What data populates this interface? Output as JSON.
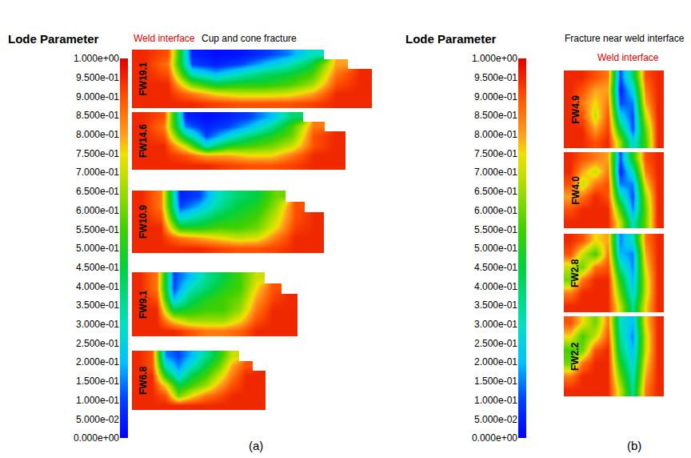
{
  "chart_data": [
    {
      "type": "heatmap",
      "caption": "(a)",
      "title": "Cup and cone fracture",
      "annotations": [
        {
          "text": "Weld interface",
          "color": "#e00000"
        }
      ],
      "colorbar": {
        "title": "Lode Parameter",
        "range": [
          0,
          1
        ],
        "ticks": [
          {
            "value": 1,
            "label": "1.000e+00"
          },
          {
            "value": 0.95,
            "label": "9.500e-01"
          },
          {
            "value": 0.9,
            "label": "9.000e-01"
          },
          {
            "value": 0.85,
            "label": "8.500e-01"
          },
          {
            "value": 0.8,
            "label": "8.000e-01"
          },
          {
            "value": 0.75,
            "label": "7.500e-01"
          },
          {
            "value": 0.7,
            "label": "7.000e-01"
          },
          {
            "value": 0.65,
            "label": "6.500e-01"
          },
          {
            "value": 0.6,
            "label": "6.000e-01"
          },
          {
            "value": 0.55,
            "label": "5.500e-01"
          },
          {
            "value": 0.5,
            "label": "5.000e-01"
          },
          {
            "value": 0.45,
            "label": "4.500e-01"
          },
          {
            "value": 0.4,
            "label": "4.000e-01"
          },
          {
            "value": 0.35,
            "label": "3.500e-01"
          },
          {
            "value": 0.3,
            "label": "3.000e-01"
          },
          {
            "value": 0.25,
            "label": "2.500e-01"
          },
          {
            "value": 0.2,
            "label": "2.000e-01"
          },
          {
            "value": 0.15,
            "label": "1.500e-01"
          },
          {
            "value": 0.1,
            "label": "1.000e-01"
          },
          {
            "value": 0.05,
            "label": "5.000e-02"
          },
          {
            "value": 0,
            "label": "0.000e+00"
          }
        ]
      },
      "maps": [
        {
          "name": "FW19.1",
          "cells": [
            [
              0.95,
              0.9,
              0.05,
              0.02,
              0.03,
              0.08,
              0.15,
              0.3,
              null,
              null
            ],
            [
              0.95,
              0.85,
              0.1,
              0.05,
              0.1,
              0.2,
              0.3,
              0.45,
              0.8,
              null
            ],
            [
              0.95,
              0.9,
              0.3,
              0.2,
              0.3,
              0.4,
              0.45,
              0.55,
              0.85,
              0.95
            ],
            [
              0.95,
              0.95,
              0.6,
              0.45,
              0.5,
              0.5,
              0.55,
              0.65,
              0.9,
              0.95
            ],
            [
              0.95,
              0.95,
              0.85,
              0.75,
              0.7,
              0.7,
              0.72,
              0.8,
              0.95,
              0.95
            ],
            [
              0.95,
              0.95,
              0.95,
              0.92,
              0.9,
              0.9,
              0.9,
              0.92,
              0.95,
              0.95
            ]
          ]
        },
        {
          "name": "FW14.6",
          "cells": [
            [
              0.95,
              0.9,
              0.05,
              0.02,
              0.05,
              0.1,
              0.2,
              0.4,
              null,
              null
            ],
            [
              0.95,
              0.85,
              0.15,
              0.05,
              0.1,
              0.2,
              0.35,
              0.55,
              0.85,
              null
            ],
            [
              0.95,
              0.9,
              0.4,
              0.1,
              0.25,
              0.4,
              0.5,
              0.6,
              0.9,
              0.95
            ],
            [
              0.95,
              0.95,
              0.7,
              0.3,
              0.5,
              0.55,
              0.6,
              0.7,
              0.9,
              0.95
            ],
            [
              0.95,
              0.95,
              0.9,
              0.8,
              0.8,
              0.75,
              0.75,
              0.85,
              0.95,
              0.95
            ],
            [
              0.95,
              0.95,
              0.95,
              0.95,
              0.92,
              0.9,
              0.9,
              0.92,
              0.95,
              0.95
            ]
          ]
        },
        {
          "name": "FW10.9",
          "cells": [
            [
              0.95,
              0.85,
              0.05,
              0.1,
              0.3,
              0.4,
              0.45,
              0.6,
              null,
              null
            ],
            [
              0.95,
              0.85,
              0.1,
              0.2,
              0.35,
              0.45,
              0.5,
              0.65,
              0.9,
              null
            ],
            [
              0.95,
              0.9,
              0.25,
              0.35,
              0.45,
              0.5,
              0.55,
              0.7,
              0.9,
              0.95
            ],
            [
              0.95,
              0.95,
              0.5,
              0.5,
              0.55,
              0.55,
              0.6,
              0.75,
              0.92,
              0.95
            ],
            [
              0.95,
              0.95,
              0.85,
              0.8,
              0.75,
              0.7,
              0.72,
              0.85,
              0.95,
              0.95
            ],
            [
              0.95,
              0.95,
              0.95,
              0.95,
              0.92,
              0.9,
              0.9,
              0.92,
              0.95,
              0.95
            ]
          ]
        },
        {
          "name": "FW9.1",
          "cells": [
            [
              0.95,
              0.85,
              0.1,
              0.2,
              0.35,
              0.45,
              0.55,
              0.7,
              null,
              null
            ],
            [
              0.95,
              0.85,
              0.1,
              0.3,
              0.4,
              0.5,
              0.55,
              0.75,
              0.9,
              null
            ],
            [
              0.95,
              0.9,
              0.2,
              0.4,
              0.5,
              0.55,
              0.6,
              0.8,
              0.92,
              0.95
            ],
            [
              0.95,
              0.95,
              0.45,
              0.5,
              0.55,
              0.55,
              0.65,
              0.85,
              0.95,
              0.95
            ],
            [
              0.95,
              0.95,
              0.75,
              0.65,
              0.65,
              0.65,
              0.75,
              0.9,
              0.95,
              0.95
            ],
            [
              0.95,
              0.95,
              0.95,
              0.9,
              0.85,
              0.85,
              0.88,
              0.95,
              0.95,
              0.95
            ]
          ]
        },
        {
          "name": "FW6.8",
          "cells": [
            [
              0.95,
              0.9,
              0.15,
              0.1,
              0.2,
              0.35,
              0.5,
              0.7,
              null,
              null
            ],
            [
              0.95,
              0.9,
              0.3,
              0.15,
              0.3,
              0.45,
              0.6,
              0.8,
              0.9,
              null
            ],
            [
              0.95,
              0.95,
              0.5,
              0.25,
              0.45,
              0.55,
              0.7,
              0.85,
              0.95,
              0.95
            ],
            [
              0.95,
              0.95,
              0.75,
              0.45,
              0.55,
              0.65,
              0.8,
              0.9,
              0.95,
              0.95
            ],
            [
              0.95,
              0.95,
              0.9,
              0.6,
              0.75,
              0.85,
              0.9,
              0.95,
              0.95,
              0.95
            ],
            [
              0.95,
              0.95,
              0.95,
              0.95,
              0.95,
              0.95,
              0.95,
              0.95,
              0.95,
              0.95
            ]
          ]
        }
      ]
    },
    {
      "type": "heatmap",
      "caption": "(b)",
      "title": "Fracture near weld interface",
      "annotations": [
        {
          "text": "Weld interface",
          "color": "#e00000"
        }
      ],
      "colorbar": {
        "title": "Lode Parameter",
        "range": [
          0,
          1
        ],
        "ticks": [
          {
            "value": 1,
            "label": "1.000e+00"
          },
          {
            "value": 0.95,
            "label": "9.500e-01"
          },
          {
            "value": 0.9,
            "label": "9.000e-01"
          },
          {
            "value": 0.85,
            "label": "8.500e-01"
          },
          {
            "value": 0.8,
            "label": "8.000e-01"
          },
          {
            "value": 0.75,
            "label": "7.500e-01"
          },
          {
            "value": 0.7,
            "label": "7.000e-01"
          },
          {
            "value": 0.65,
            "label": "6.500e-01"
          },
          {
            "value": 0.6,
            "label": "6.000e-01"
          },
          {
            "value": 0.55,
            "label": "5.500e-01"
          },
          {
            "value": 0.5,
            "label": "5.000e-01"
          },
          {
            "value": 0.45,
            "label": "4.500e-01"
          },
          {
            "value": 0.4,
            "label": "4.000e-01"
          },
          {
            "value": 0.35,
            "label": "3.500e-01"
          },
          {
            "value": 0.3,
            "label": "3.000e-01"
          },
          {
            "value": 0.25,
            "label": "2.500e-01"
          },
          {
            "value": 0.2,
            "label": "2.000e-01"
          },
          {
            "value": 0.15,
            "label": "1.500e-01"
          },
          {
            "value": 0.1,
            "label": "1.000e-01"
          },
          {
            "value": 0.05,
            "label": "5.000e-02"
          },
          {
            "value": 0,
            "label": "0.000e+00"
          }
        ]
      },
      "maps": [
        {
          "name": "FW4.9",
          "cells": [
            [
              0.95,
              0.95,
              0.9,
              0.85,
              0.1,
              0.4,
              0.9,
              0.95
            ],
            [
              0.95,
              0.9,
              0.8,
              0.8,
              0.05,
              0.25,
              0.85,
              0.95
            ],
            [
              0.95,
              0.85,
              0.75,
              0.85,
              0.1,
              0.15,
              0.8,
              0.95
            ],
            [
              0.95,
              0.9,
              0.7,
              0.9,
              0.25,
              0.1,
              0.7,
              0.95
            ],
            [
              0.95,
              0.95,
              0.8,
              0.92,
              0.45,
              0.1,
              0.6,
              0.95
            ],
            [
              0.95,
              0.95,
              0.9,
              0.95,
              0.65,
              0.25,
              0.55,
              0.95
            ]
          ]
        },
        {
          "name": "FW4.0",
          "cells": [
            [
              0.95,
              0.9,
              0.85,
              0.8,
              0.1,
              0.5,
              0.9,
              0.95
            ],
            [
              0.95,
              0.8,
              0.7,
              0.85,
              0.05,
              0.3,
              0.85,
              0.95
            ],
            [
              0.9,
              0.7,
              0.85,
              0.9,
              0.15,
              0.15,
              0.75,
              0.95
            ],
            [
              0.8,
              0.85,
              0.95,
              0.9,
              0.35,
              0.1,
              0.65,
              0.95
            ],
            [
              0.9,
              0.95,
              0.95,
              0.95,
              0.55,
              0.15,
              0.6,
              0.95
            ],
            [
              0.95,
              0.95,
              0.95,
              0.95,
              0.7,
              0.3,
              0.6,
              0.95
            ]
          ]
        },
        {
          "name": "FW2.8",
          "cells": [
            [
              0.95,
              0.9,
              0.75,
              0.8,
              0.15,
              0.3,
              0.85,
              0.95
            ],
            [
              0.9,
              0.7,
              0.55,
              0.85,
              0.2,
              0.15,
              0.8,
              0.95
            ],
            [
              0.7,
              0.6,
              0.85,
              0.9,
              0.35,
              0.15,
              0.75,
              0.95
            ],
            [
              0.6,
              0.85,
              0.95,
              0.95,
              0.5,
              0.2,
              0.7,
              0.95
            ],
            [
              0.85,
              0.95,
              0.95,
              0.95,
              0.6,
              0.25,
              0.7,
              0.95
            ],
            [
              0.95,
              0.95,
              0.95,
              0.95,
              0.7,
              0.35,
              0.75,
              0.95
            ]
          ]
        },
        {
          "name": "FW2.2",
          "cells": [
            [
              0.9,
              0.75,
              0.6,
              0.85,
              0.3,
              0.2,
              0.75,
              0.95
            ],
            [
              0.75,
              0.55,
              0.7,
              0.9,
              0.35,
              0.15,
              0.7,
              0.95
            ],
            [
              0.55,
              0.6,
              0.9,
              0.95,
              0.4,
              0.2,
              0.7,
              0.95
            ],
            [
              0.6,
              0.85,
              0.95,
              0.95,
              0.5,
              0.25,
              0.75,
              0.95
            ],
            [
              0.85,
              0.95,
              0.95,
              0.95,
              0.6,
              0.3,
              0.8,
              0.95
            ],
            [
              0.95,
              0.95,
              0.95,
              0.95,
              0.7,
              0.35,
              0.85,
              0.95
            ]
          ]
        }
      ]
    }
  ]
}
